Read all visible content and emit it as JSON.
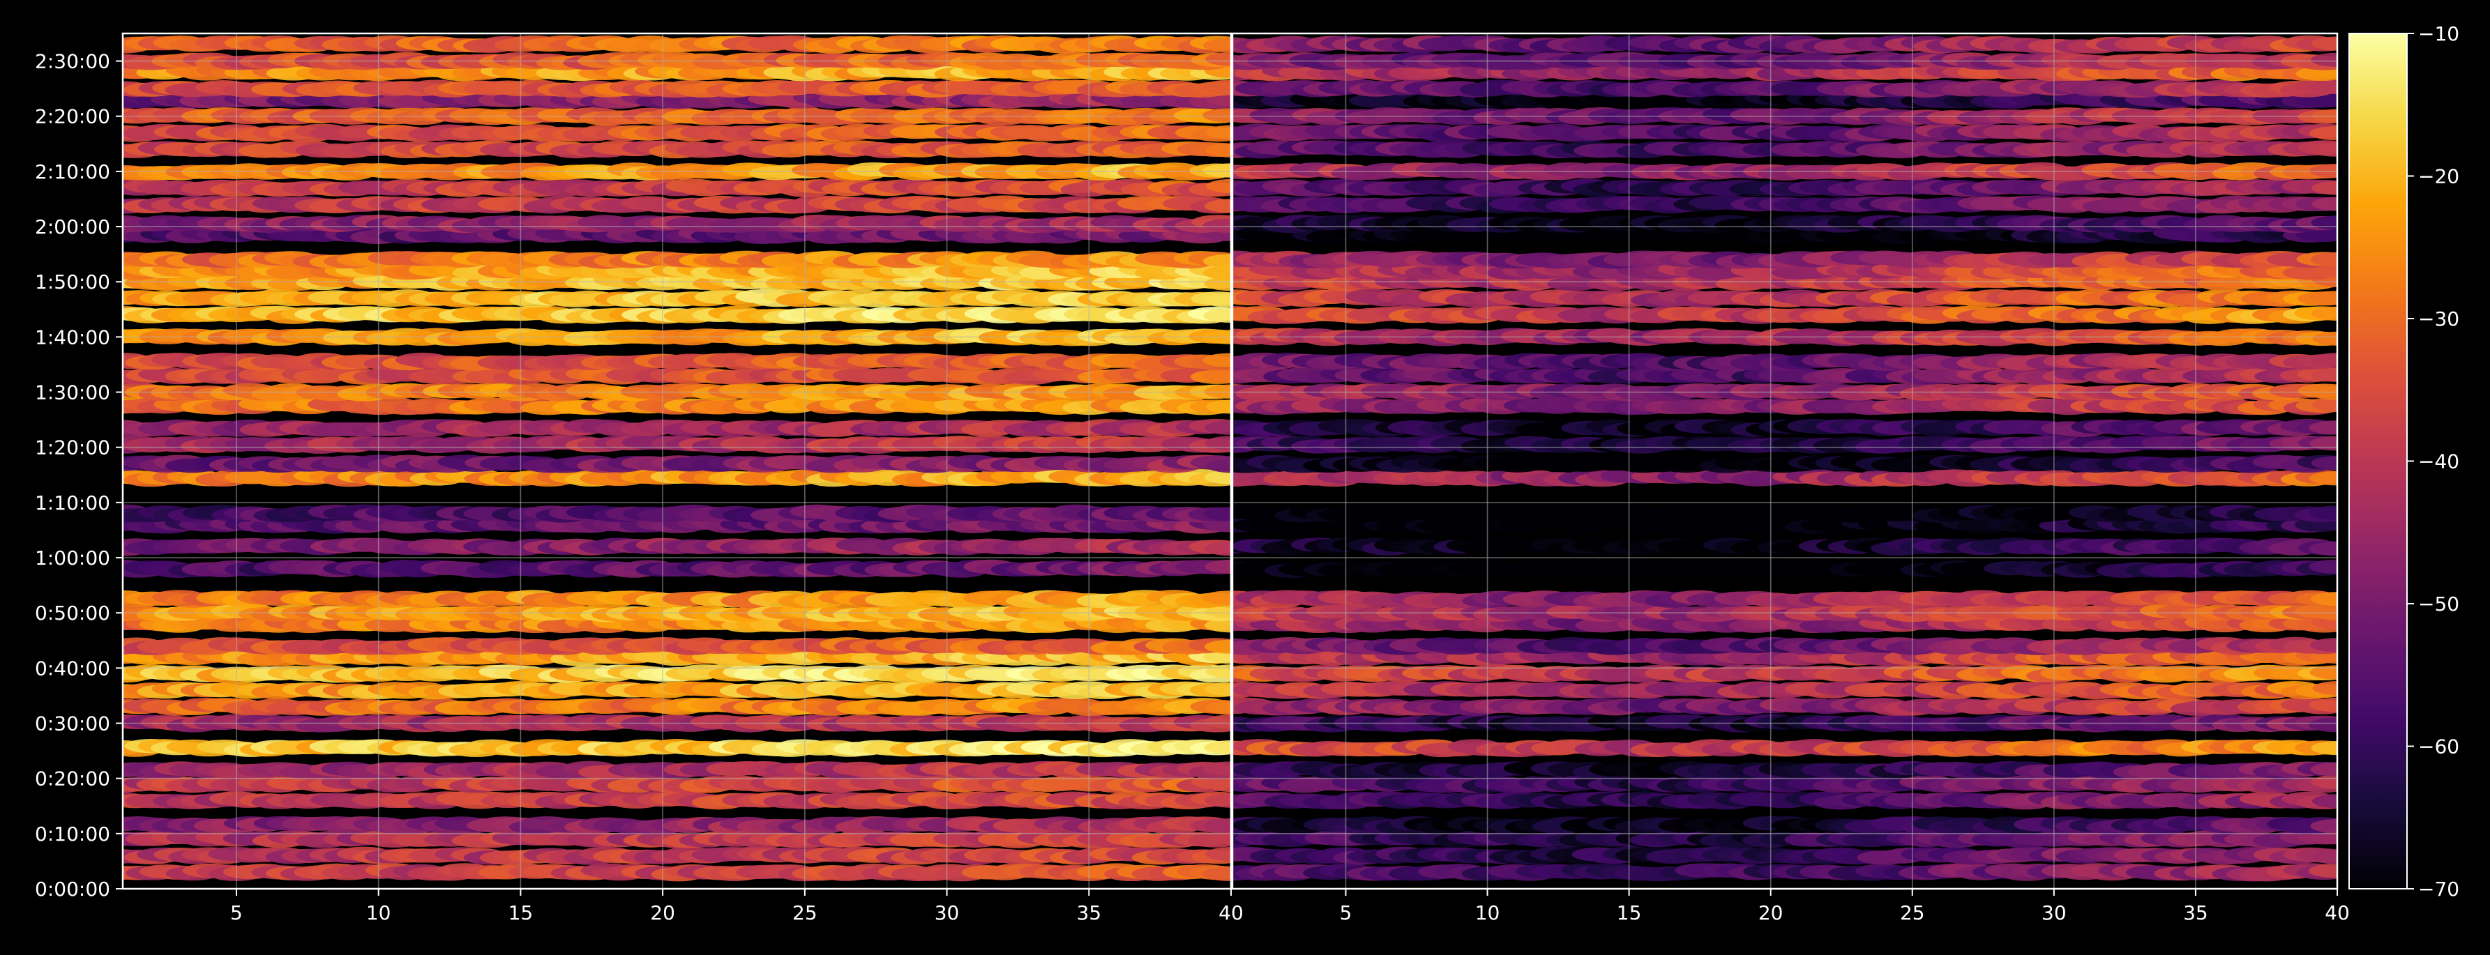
{
  "chart_data": {
    "type": "heatmap",
    "title": "",
    "xlabel": "",
    "ylabel": "",
    "grid": true,
    "colormap": "inferno",
    "colors": {
      "background": "#000000",
      "axis": "#ffffff",
      "grid": "#b0b0b0"
    },
    "xlim": [
      1,
      40
    ],
    "x_ticks": [
      "5",
      "10",
      "15",
      "20",
      "25",
      "30",
      "35",
      "40"
    ],
    "x_tick_values": [
      5,
      10,
      15,
      20,
      25,
      30,
      35,
      40
    ],
    "ylim": [
      0,
      9300
    ],
    "y_ticks": [
      "0:00:00",
      "0:10:00",
      "0:20:00",
      "0:30:00",
      "0:40:00",
      "0:50:00",
      "1:00:00",
      "1:10:00",
      "1:20:00",
      "1:30:00",
      "1:40:00",
      "1:50:00",
      "2:00:00",
      "2:10:00",
      "2:20:00",
      "2:30:00"
    ],
    "y_tick_values": [
      0,
      600,
      1200,
      1800,
      2400,
      3000,
      3600,
      4200,
      4800,
      5400,
      6000,
      6600,
      7200,
      7800,
      8400,
      9000
    ],
    "colorbar": {
      "range": [
        -70,
        -10
      ],
      "ticks": [
        "−10",
        "−20",
        "−30",
        "−40",
        "−50",
        "−60",
        "−70"
      ],
      "tick_values": [
        -10,
        -20,
        -30,
        -40,
        -50,
        -60,
        -70
      ]
    },
    "panels": [
      {
        "name": "left",
        "offset": 0,
        "x_trend": [
          [
            1,
            -3
          ],
          [
            20,
            0
          ],
          [
            40,
            4
          ]
        ],
        "bands": [
          {
            "t": 180,
            "level": -37
          },
          {
            "t": 360,
            "level": -39
          },
          {
            "t": 540,
            "level": -40
          },
          {
            "t": 690,
            "level": -46
          },
          {
            "t": 960,
            "level": -38
          },
          {
            "t": 1140,
            "level": -37
          },
          {
            "t": 1290,
            "level": -43
          },
          {
            "t": 1530,
            "level": -17
          },
          {
            "t": 1800,
            "level": -42
          },
          {
            "t": 1980,
            "level": -28
          },
          {
            "t": 2160,
            "level": -22
          },
          {
            "t": 2340,
            "level": -17
          },
          {
            "t": 2520,
            "level": -22
          },
          {
            "t": 2640,
            "level": -33
          },
          {
            "t": 2880,
            "level": -26
          },
          {
            "t": 3000,
            "level": -22
          },
          {
            "t": 3150,
            "level": -25
          },
          {
            "t": 3480,
            "level": -54
          },
          {
            "t": 3720,
            "level": -47
          },
          {
            "t": 3960,
            "level": -53
          },
          {
            "t": 4080,
            "level": -55
          },
          {
            "t": 4470,
            "level": -24
          },
          {
            "t": 4620,
            "level": -50
          },
          {
            "t": 4830,
            "level": -42
          },
          {
            "t": 5010,
            "level": -44
          },
          {
            "t": 5250,
            "level": -27
          },
          {
            "t": 5400,
            "level": -26
          },
          {
            "t": 5580,
            "level": -34
          },
          {
            "t": 5730,
            "level": -33
          },
          {
            "t": 6000,
            "level": -22
          },
          {
            "t": 6240,
            "level": -17
          },
          {
            "t": 6420,
            "level": -19
          },
          {
            "t": 6600,
            "level": -20
          },
          {
            "t": 6720,
            "level": -22
          },
          {
            "t": 6840,
            "level": -27
          },
          {
            "t": 7110,
            "level": -53
          },
          {
            "t": 7230,
            "level": -46
          },
          {
            "t": 7440,
            "level": -38
          },
          {
            "t": 7620,
            "level": -37
          },
          {
            "t": 7800,
            "level": -24
          },
          {
            "t": 8040,
            "level": -35
          },
          {
            "t": 8220,
            "level": -33
          },
          {
            "t": 8400,
            "level": -30
          },
          {
            "t": 8580,
            "level": -48
          },
          {
            "t": 8700,
            "level": -33
          },
          {
            "t": 8880,
            "level": -23
          },
          {
            "t": 9000,
            "level": -32
          },
          {
            "t": 9180,
            "level": -30
          }
        ]
      },
      {
        "name": "right",
        "offset": -14,
        "x_trend": [
          [
            1,
            -2
          ],
          [
            15,
            -10
          ],
          [
            20,
            -8
          ],
          [
            30,
            2
          ],
          [
            40,
            8
          ]
        ],
        "bands": [
          {
            "t": 180,
            "level": -37
          },
          {
            "t": 360,
            "level": -39
          },
          {
            "t": 540,
            "level": -40
          },
          {
            "t": 690,
            "level": -46
          },
          {
            "t": 960,
            "level": -38
          },
          {
            "t": 1140,
            "level": -37
          },
          {
            "t": 1290,
            "level": -43
          },
          {
            "t": 1530,
            "level": -17
          },
          {
            "t": 1800,
            "level": -42
          },
          {
            "t": 1980,
            "level": -28
          },
          {
            "t": 2160,
            "level": -22
          },
          {
            "t": 2340,
            "level": -17
          },
          {
            "t": 2520,
            "level": -22
          },
          {
            "t": 2640,
            "level": -33
          },
          {
            "t": 2880,
            "level": -26
          },
          {
            "t": 3000,
            "level": -22
          },
          {
            "t": 3150,
            "level": -25
          },
          {
            "t": 3480,
            "level": -54
          },
          {
            "t": 3720,
            "level": -47
          },
          {
            "t": 3960,
            "level": -53
          },
          {
            "t": 4080,
            "level": -55
          },
          {
            "t": 4470,
            "level": -24
          },
          {
            "t": 4620,
            "level": -50
          },
          {
            "t": 4830,
            "level": -42
          },
          {
            "t": 5010,
            "level": -44
          },
          {
            "t": 5250,
            "level": -27
          },
          {
            "t": 5400,
            "level": -26
          },
          {
            "t": 5580,
            "level": -34
          },
          {
            "t": 5730,
            "level": -33
          },
          {
            "t": 6000,
            "level": -22
          },
          {
            "t": 6240,
            "level": -17
          },
          {
            "t": 6420,
            "level": -19
          },
          {
            "t": 6600,
            "level": -20
          },
          {
            "t": 6720,
            "level": -22
          },
          {
            "t": 6840,
            "level": -27
          },
          {
            "t": 7110,
            "level": -53
          },
          {
            "t": 7230,
            "level": -46
          },
          {
            "t": 7440,
            "level": -38
          },
          {
            "t": 7620,
            "level": -37
          },
          {
            "t": 7800,
            "level": -24
          },
          {
            "t": 8040,
            "level": -35
          },
          {
            "t": 8220,
            "level": -33
          },
          {
            "t": 8400,
            "level": -30
          },
          {
            "t": 8580,
            "level": -48
          },
          {
            "t": 8700,
            "level": -33
          },
          {
            "t": 8880,
            "level": -23
          },
          {
            "t": 9000,
            "level": -32
          },
          {
            "t": 9180,
            "level": -30
          }
        ]
      }
    ]
  }
}
